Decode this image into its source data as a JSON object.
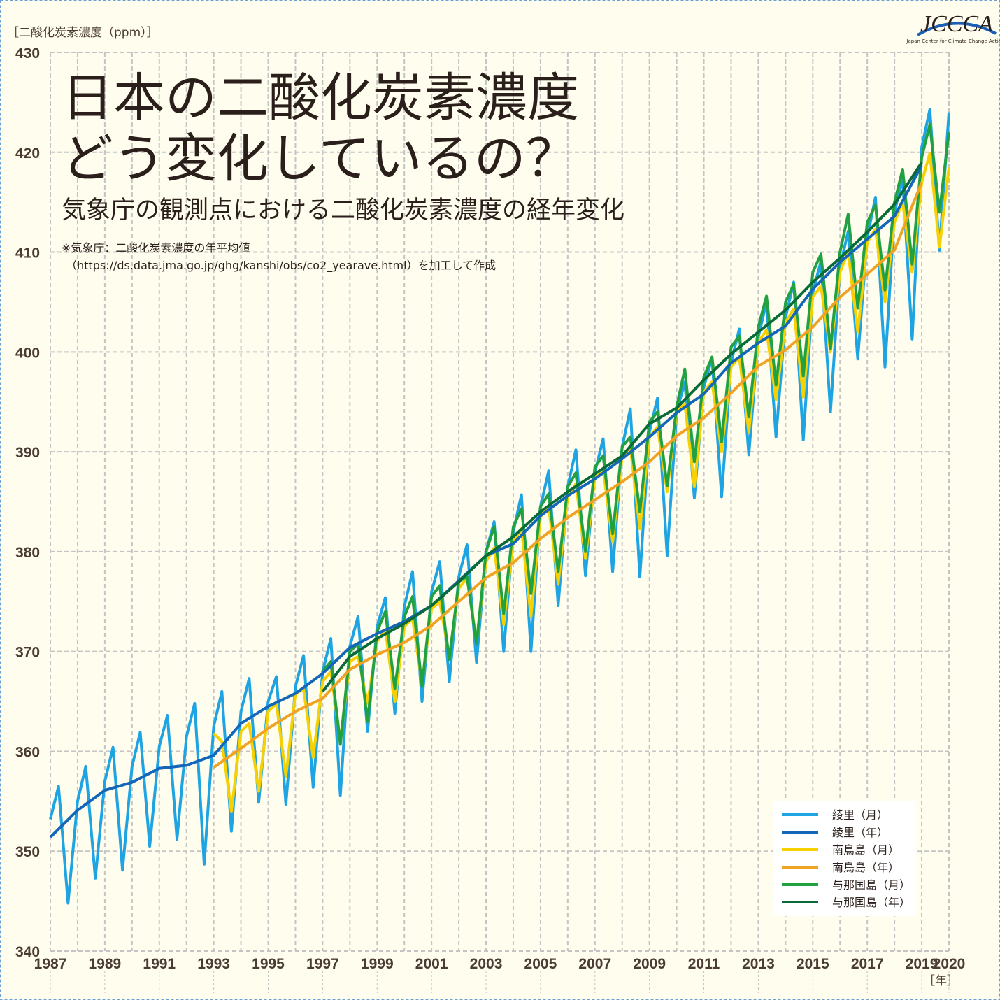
{
  "chart_data": {
    "type": "line",
    "title_lines": [
      "日本の二酸化炭素濃度",
      "どう変化しているの？"
    ],
    "subtitle": "気象庁の観測点における二酸化炭素濃度の経年変化",
    "notes": [
      "※気象庁：二酸化炭素濃度の年平均値",
      "（https://ds.data.jma.go.jp/ghg/kanshi/obs/co2_yearave.html）を加工して作成"
    ],
    "y_label": "［二酸化炭素濃度（ppm）］",
    "x_label": "［年］",
    "logo": "JCCCA",
    "logo_sub": "Japan Center for Climate Change Actions",
    "xlim": [
      1987,
      2020
    ],
    "ylim": [
      340,
      430
    ],
    "xticks": [
      1987,
      1989,
      1991,
      1993,
      1995,
      1997,
      1999,
      2001,
      2003,
      2005,
      2007,
      2009,
      2011,
      2013,
      2015,
      2017,
      2019,
      2020
    ],
    "xgrid": [
      1987,
      1988,
      1989,
      1990,
      1991,
      1992,
      1993,
      1994,
      1995,
      1996,
      1997,
      1998,
      1999,
      2000,
      2001,
      2002,
      2003,
      2004,
      2005,
      2006,
      2007,
      2008,
      2009,
      2010,
      2011,
      2012,
      2013,
      2014,
      2015,
      2016,
      2017,
      2018,
      2019,
      2020
    ],
    "yticks": [
      340,
      350,
      360,
      370,
      380,
      390,
      400,
      410,
      420,
      430
    ],
    "grid": true,
    "legend": "lower right",
    "series": [
      {
        "name": "綾里（月）",
        "color": "#1ea4e2",
        "width": 4,
        "x": [
          1987,
          1987.3,
          1987.65,
          1988,
          1988.3,
          1988.65,
          1989,
          1989.3,
          1989.65,
          1990,
          1990.3,
          1990.65,
          1991,
          1991.3,
          1991.65,
          1992,
          1992.3,
          1992.65,
          1993,
          1993.3,
          1993.65,
          1994,
          1994.3,
          1994.65,
          1995,
          1995.3,
          1995.65,
          1996,
          1996.3,
          1996.65,
          1997,
          1997.3,
          1997.65,
          1998,
          1998.3,
          1998.65,
          1999,
          1999.3,
          1999.65,
          2000,
          2000.3,
          2000.65,
          2001,
          2001.3,
          2001.65,
          2002,
          2002.3,
          2002.65,
          2003,
          2003.3,
          2003.65,
          2004,
          2004.3,
          2004.65,
          2005,
          2005.3,
          2005.65,
          2006,
          2006.3,
          2006.65,
          2007,
          2007.3,
          2007.65,
          2008,
          2008.3,
          2008.65,
          2009,
          2009.3,
          2009.65,
          2010,
          2010.3,
          2010.65,
          2011,
          2011.3,
          2011.65,
          2012,
          2012.3,
          2012.65,
          2013,
          2013.3,
          2013.65,
          2014,
          2014.3,
          2014.65,
          2015,
          2015.3,
          2015.65,
          2016,
          2016.3,
          2016.65,
          2017,
          2017.3,
          2017.65,
          2018,
          2018.3,
          2018.65,
          2019,
          2019.3,
          2019.65,
          2020
        ],
        "values": [
          353.2,
          356.5,
          344.8,
          355.0,
          358.5,
          347.3,
          357.0,
          360.4,
          348.1,
          358.5,
          361.9,
          350.5,
          360.5,
          363.6,
          351.2,
          361.5,
          364.8,
          348.7,
          362.5,
          366.0,
          352.0,
          364.0,
          367.3,
          354.9,
          365.0,
          367.5,
          354.7,
          366.5,
          369.6,
          356.4,
          368.0,
          371.3,
          355.6,
          370.5,
          373.5,
          362.0,
          372.5,
          375.4,
          363.8,
          374.5,
          378.0,
          365.0,
          376.0,
          379.0,
          367.0,
          377.5,
          380.7,
          368.9,
          380.0,
          383.0,
          370.0,
          382.0,
          385.7,
          370.0,
          384.5,
          388.1,
          374.6,
          386.5,
          390.2,
          377.6,
          388.0,
          391.3,
          378.0,
          390.5,
          394.3,
          377.5,
          392.0,
          395.4,
          379.6,
          394.0,
          397.0,
          385.4,
          396.5,
          399.4,
          385.5,
          399.0,
          402.3,
          389.7,
          401.5,
          405.0,
          391.5,
          403.5,
          407.0,
          391.2,
          406.0,
          409.1,
          394.0,
          408.5,
          412.1,
          399.3,
          411.5,
          415.5,
          398.5,
          414.0,
          417.4,
          401.3,
          420.5,
          424.3,
          410.2,
          424.0
        ]
      },
      {
        "name": "綾里（年）",
        "color": "#1466b8",
        "width": 4,
        "x": [
          1987,
          1988,
          1989,
          1990,
          1991,
          1992,
          1993,
          1994,
          1995,
          1996,
          1997,
          1998,
          1999,
          2000,
          2001,
          2002,
          2003,
          2004,
          2005,
          2006,
          2007,
          2008,
          2009,
          2010,
          2011,
          2012,
          2013,
          2014,
          2015,
          2016,
          2017,
          2018,
          2019
        ],
        "values": [
          351.4,
          354.1,
          356.1,
          356.9,
          358.3,
          358.6,
          359.6,
          362.8,
          364.5,
          365.8,
          367.8,
          370.4,
          371.8,
          373.0,
          374.6,
          377.1,
          379.6,
          380.8,
          383.6,
          385.6,
          387.3,
          389.3,
          391.5,
          393.9,
          395.8,
          398.9,
          400.9,
          402.6,
          406.3,
          409.0,
          411.3,
          413.6,
          418.7
        ]
      },
      {
        "name": "南鳥島（月）",
        "color": "#f6d000",
        "width": 4,
        "x": [
          1993,
          1993.3,
          1993.65,
          1994,
          1994.3,
          1994.65,
          1995,
          1995.3,
          1995.65,
          1996,
          1996.3,
          1996.65,
          1997,
          1997.3,
          1997.65,
          1998,
          1998.3,
          1998.65,
          1999,
          1999.3,
          1999.65,
          2000,
          2000.3,
          2000.65,
          2001,
          2001.3,
          2001.65,
          2002,
          2002.3,
          2002.65,
          2003,
          2003.3,
          2003.65,
          2004,
          2004.3,
          2004.65,
          2005,
          2005.3,
          2005.65,
          2006,
          2006.3,
          2006.65,
          2007,
          2007.3,
          2007.65,
          2008,
          2008.3,
          2008.65,
          2009,
          2009.3,
          2009.65,
          2010,
          2010.3,
          2010.65,
          2011,
          2011.3,
          2011.65,
          2012,
          2012.3,
          2012.65,
          2013,
          2013.3,
          2013.65,
          2014,
          2014.3,
          2014.65,
          2015,
          2015.3,
          2015.65,
          2016,
          2016.3,
          2016.65,
          2017,
          2017.3,
          2017.65,
          2018,
          2018.3,
          2018.65,
          2019,
          2019.3,
          2019.65,
          2020
        ],
        "values": [
          361.8,
          361.0,
          354.0,
          362.0,
          362.8,
          356.0,
          364.0,
          364.8,
          357.5,
          365.8,
          366.2,
          359.4,
          367.0,
          368.0,
          361.0,
          369.0,
          369.5,
          364.8,
          371.0,
          372.2,
          365.0,
          372.5,
          373.3,
          366.8,
          374.3,
          375.0,
          369.5,
          376.3,
          377.4,
          371.0,
          379.0,
          380.4,
          372.7,
          381.0,
          382.3,
          373.5,
          383.5,
          384.5,
          376.8,
          385.5,
          386.8,
          379.3,
          387.5,
          388.3,
          381.0,
          389.5,
          390.5,
          382.3,
          391.5,
          392.5,
          386.0,
          394.0,
          394.8,
          386.5,
          396.0,
          397.0,
          390.0,
          398.5,
          399.5,
          392.0,
          401.0,
          402.2,
          395.2,
          403.0,
          404.3,
          395.5,
          405.5,
          406.6,
          400.0,
          408.0,
          410.0,
          402.0,
          411.0,
          412.3,
          405.0,
          413.0,
          415.0,
          408.0,
          417.0,
          419.9,
          410.5,
          418.5
        ]
      },
      {
        "name": "南鳥島（年）",
        "color": "#f0a224",
        "width": 4,
        "x": [
          1993,
          1994,
          1995,
          1996,
          1997,
          1998,
          1999,
          2000,
          2001,
          2002,
          2003,
          2004,
          2005,
          2006,
          2007,
          2008,
          2009,
          2010,
          2011,
          2012,
          2013,
          2014,
          2015,
          2016,
          2017,
          2018,
          2019
        ],
        "values": [
          358.4,
          360.3,
          362.3,
          364.0,
          365.3,
          368.2,
          369.7,
          370.9,
          372.6,
          375.0,
          377.4,
          378.9,
          381.3,
          383.4,
          385.2,
          387.0,
          389.0,
          391.6,
          393.4,
          395.9,
          398.6,
          400.2,
          402.5,
          405.5,
          407.8,
          410.2,
          417.0
        ]
      },
      {
        "name": "与那国島（月）",
        "color": "#22a143",
        "width": 4,
        "x": [
          1997,
          1997.3,
          1997.65,
          1998,
          1998.3,
          1998.65,
          1999,
          1999.3,
          1999.65,
          2000,
          2000.3,
          2000.65,
          2001,
          2001.3,
          2001.65,
          2002,
          2002.3,
          2002.65,
          2003,
          2003.3,
          2003.65,
          2004,
          2004.3,
          2004.65,
          2005,
          2005.3,
          2005.65,
          2006,
          2006.3,
          2006.65,
          2007,
          2007.3,
          2007.65,
          2008,
          2008.3,
          2008.65,
          2009,
          2009.3,
          2009.65,
          2010,
          2010.3,
          2010.65,
          2011,
          2011.3,
          2011.65,
          2012,
          2012.3,
          2012.65,
          2013,
          2013.3,
          2013.65,
          2014,
          2014.3,
          2014.65,
          2015,
          2015.3,
          2015.65,
          2016,
          2016.3,
          2016.65,
          2017,
          2017.3,
          2017.65,
          2018,
          2018.3,
          2018.65,
          2019,
          2019.3,
          2019.65,
          2020
        ],
        "values": [
          368.0,
          369.0,
          360.7,
          370.0,
          370.8,
          363.0,
          372.0,
          374.0,
          366.3,
          373.5,
          375.5,
          366.5,
          375.5,
          376.6,
          369.2,
          377.0,
          377.5,
          370.8,
          380.0,
          382.5,
          373.8,
          382.5,
          384.3,
          375.8,
          384.5,
          385.8,
          378.0,
          386.5,
          387.9,
          380.0,
          388.5,
          389.6,
          381.8,
          390.5,
          391.5,
          384.0,
          393.0,
          394.0,
          386.6,
          394.5,
          398.3,
          389.0,
          397.5,
          399.5,
          391.0,
          400.5,
          401.6,
          393.5,
          402.5,
          405.6,
          396.7,
          405.0,
          406.8,
          397.6,
          408.0,
          409.8,
          400.3,
          410.0,
          413.8,
          404.4,
          413.0,
          414.7,
          406.2,
          415.0,
          418.3,
          408.8,
          419.5,
          422.8,
          414.0,
          422.0
        ]
      },
      {
        "name": "与那国島（年）",
        "color": "#0a6b3a",
        "width": 4,
        "x": [
          1997,
          1998,
          1999,
          2000,
          2001,
          2002,
          2003,
          2004,
          2005,
          2006,
          2007,
          2008,
          2009,
          2010,
          2011,
          2012,
          2013,
          2014,
          2015,
          2016,
          2017,
          2018,
          2019
        ],
        "values": [
          366.0,
          369.5,
          371.3,
          372.8,
          374.6,
          377.0,
          379.6,
          381.5,
          384.0,
          386.0,
          387.8,
          389.6,
          392.8,
          394.4,
          397.2,
          399.8,
          402.0,
          404.2,
          407.0,
          409.4,
          412.0,
          414.8,
          419.0
        ]
      }
    ]
  }
}
